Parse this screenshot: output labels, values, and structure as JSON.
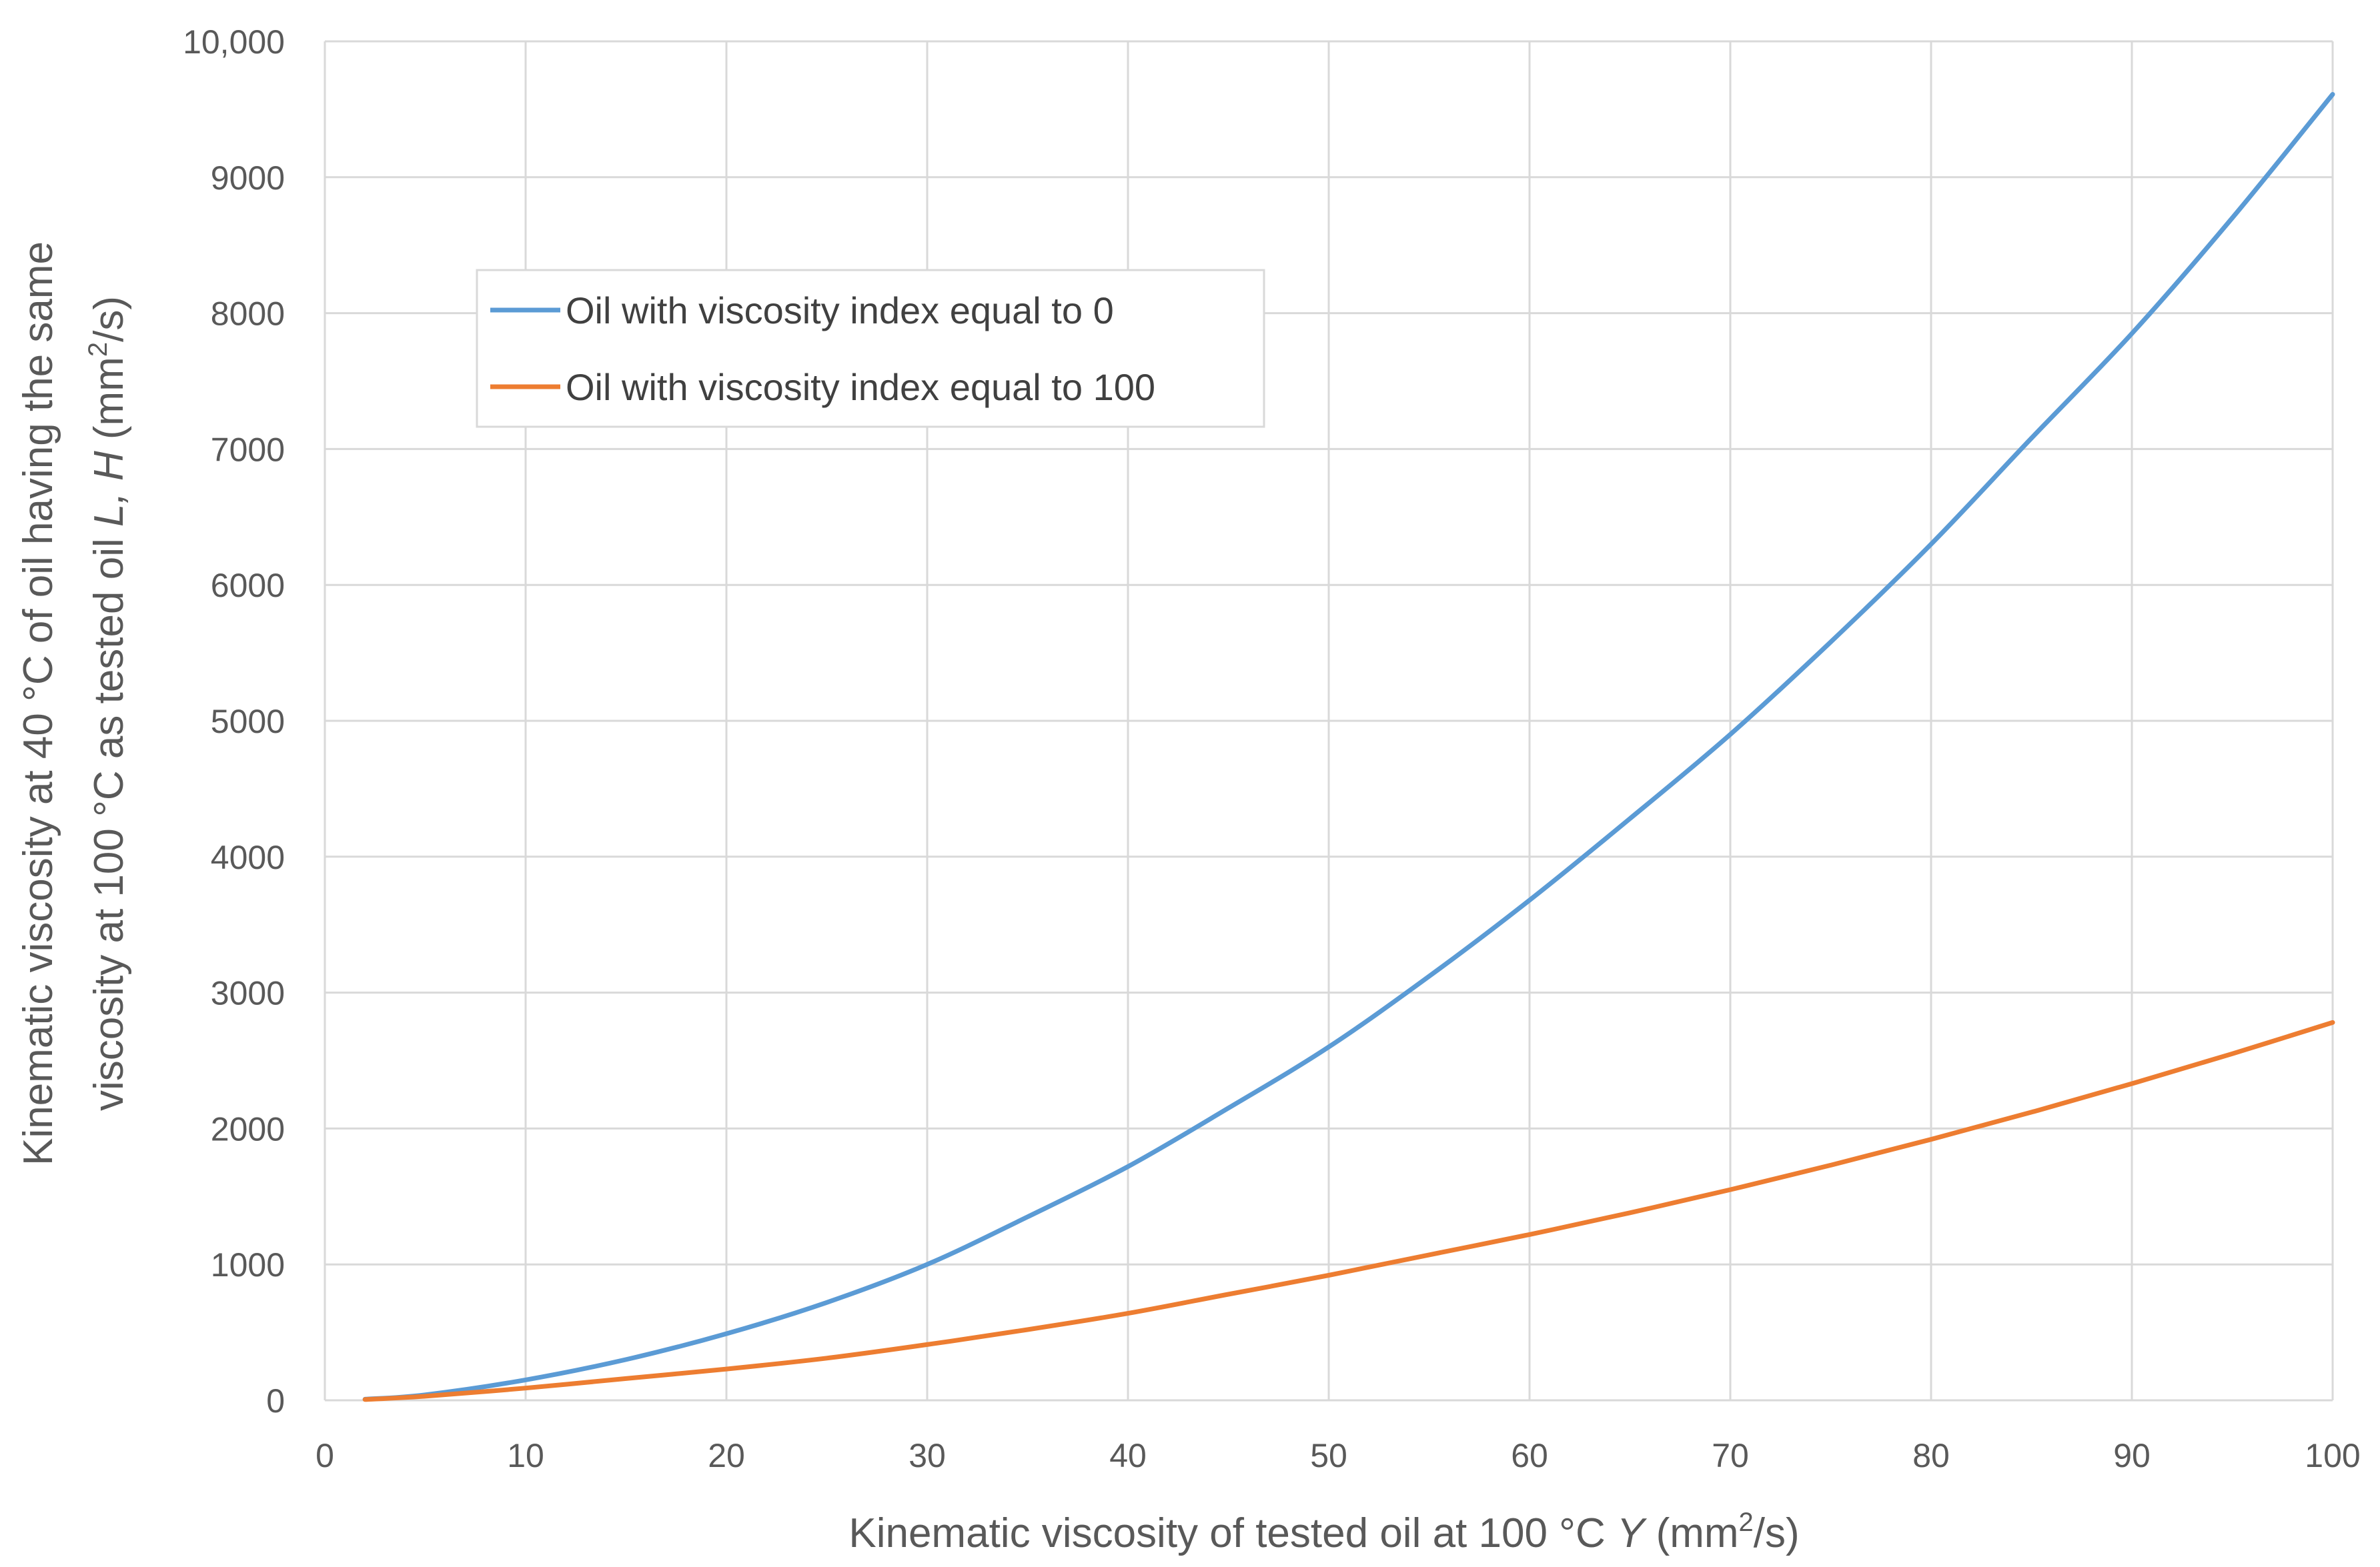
{
  "chart_data": {
    "type": "line",
    "title": "",
    "xlabel": {
      "prefix": "Kinematic viscosity of tested oil at 100 °C ",
      "var": "Y",
      "unit_open": " (mm",
      "sup": "2",
      "unit_close": "/s)"
    },
    "ylabel": {
      "line1": "Kinematic viscosity at 40 °C of oil having the same",
      "line2_prefix": "viscosity at 100 °C as tested oil ",
      "line2_var": "L, H",
      "line2_unit_open": " (mm",
      "line2_sup": "2",
      "line2_unit_close": "/s)"
    },
    "xlim": [
      0,
      100
    ],
    "ylim": [
      0,
      10000
    ],
    "x_ticks": [
      0,
      10,
      20,
      30,
      40,
      50,
      60,
      70,
      80,
      90,
      100
    ],
    "x_tick_labels": [
      "0",
      "10",
      "20",
      "30",
      "40",
      "50",
      "60",
      "70",
      "80",
      "90",
      "100"
    ],
    "y_ticks": [
      0,
      1000,
      2000,
      3000,
      4000,
      5000,
      6000,
      7000,
      8000,
      9000,
      10000
    ],
    "y_tick_labels": [
      "0",
      "1000",
      "2000",
      "3000",
      "4000",
      "5000",
      "6000",
      "7000",
      "8000",
      "9000",
      "10,000"
    ],
    "grid": true,
    "legend_position": "upper-left",
    "series": [
      {
        "name": "Oil with viscosity index equal to 0",
        "color": "#5b9bd5",
        "x": [
          2,
          5,
          10,
          15,
          20,
          25,
          30,
          35,
          40,
          45,
          50,
          55,
          60,
          65,
          70,
          75,
          80,
          85,
          90,
          95,
          100
        ],
        "y": [
          8,
          40,
          150,
          300,
          490,
          720,
          1000,
          1350,
          1720,
          2150,
          2600,
          3120,
          3680,
          4280,
          4900,
          5580,
          6300,
          7080,
          7850,
          8700,
          9610
        ]
      },
      {
        "name": "Oil with viscosity index equal to 100",
        "color": "#ed7d31",
        "x": [
          2,
          5,
          10,
          15,
          20,
          25,
          30,
          35,
          40,
          45,
          50,
          55,
          60,
          65,
          70,
          75,
          80,
          85,
          90,
          95,
          100
        ],
        "y": [
          6,
          30,
          90,
          160,
          230,
          310,
          410,
          520,
          640,
          780,
          920,
          1070,
          1220,
          1380,
          1550,
          1730,
          1920,
          2120,
          2330,
          2550,
          2780
        ]
      }
    ]
  }
}
